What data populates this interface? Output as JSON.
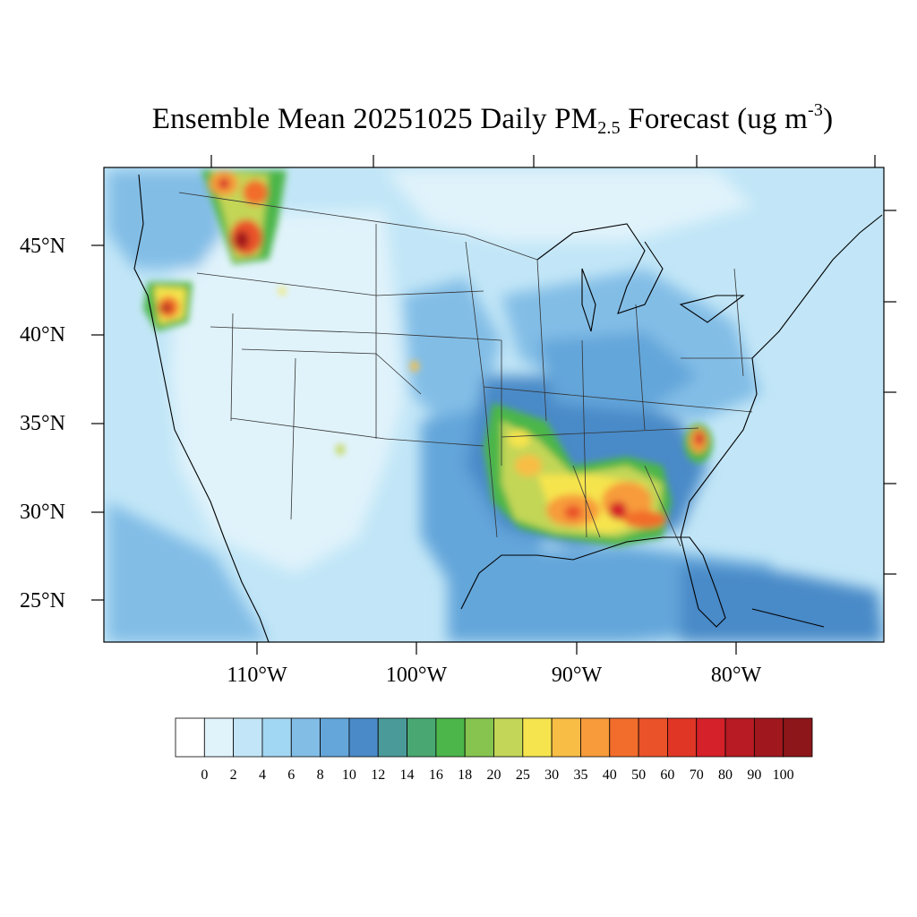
{
  "title": {
    "prefix": "Ensemble Mean 20251025 Daily PM",
    "sub": "2.5",
    "middle": " Forecast (ug m",
    "sup": "-3",
    "suffix": ")"
  },
  "map": {
    "lat_labels": [
      "45°N",
      "40°N",
      "35°N",
      "30°N",
      "25°N"
    ],
    "lon_labels": [
      "110°W",
      "100°W",
      "90°W",
      "80°W"
    ],
    "description_colors": {
      "background": "#c7e7f8",
      "coast": "#000000",
      "state_lines": "#333333"
    }
  },
  "colorbar": {
    "labels": [
      "0",
      "2",
      "4",
      "6",
      "8",
      "10",
      "12",
      "14",
      "16",
      "18",
      "20",
      "25",
      "30",
      "35",
      "40",
      "50",
      "60",
      "70",
      "80",
      "90",
      "100"
    ],
    "colors": [
      "#ffffff",
      "#e0f3fb",
      "#c2e6f7",
      "#a2d7f3",
      "#82bde6",
      "#64a6da",
      "#4a8ac8",
      "#4b9a9a",
      "#49a872",
      "#4cb64a",
      "#86c44f",
      "#c3d657",
      "#f6e44e",
      "#f8bd45",
      "#f79b3b",
      "#f26d2c",
      "#ea5229",
      "#e03625",
      "#d4212a",
      "#b81b23",
      "#a0181e",
      "#8c1619"
    ]
  }
}
